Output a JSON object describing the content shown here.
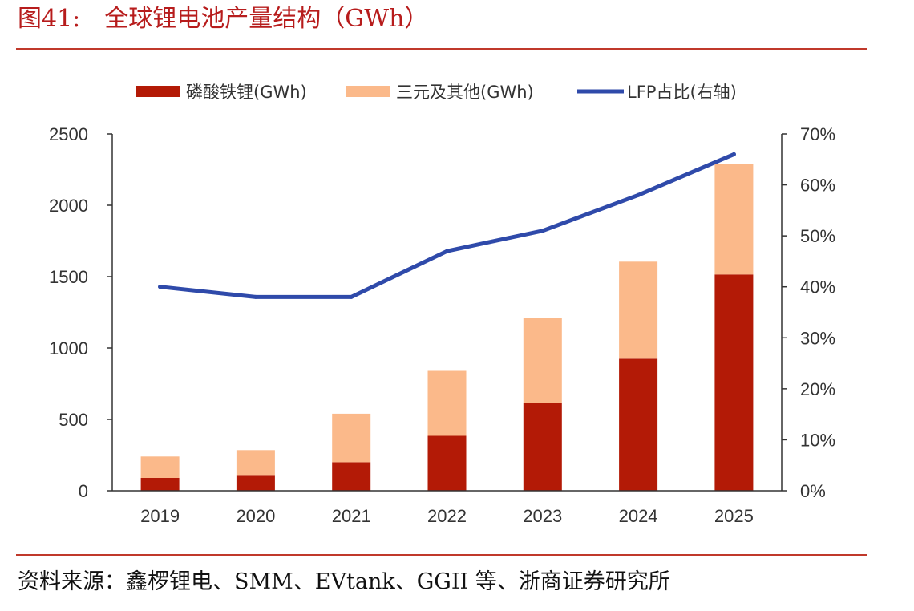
{
  "header": {
    "figure_number": "图41:",
    "title": "全球锂电池产量结构（GWh）"
  },
  "footer": {
    "source": "资料来源：鑫椤锂电、SMM、EVtank、GGII 等、浙商证券研究所"
  },
  "colors": {
    "lfp": "#b31a06",
    "ternary": "#fbb98a",
    "share_line": "#2f4aaa",
    "rule": "#c0392b",
    "title": "#b71c1c"
  },
  "chart_data": {
    "type": "bar",
    "stacked": true,
    "categories": [
      "2019",
      "2020",
      "2021",
      "2022",
      "2023",
      "2024",
      "2025"
    ],
    "series": [
      {
        "name": "磷酸铁锂(GWh)",
        "type": "bar",
        "axis": "left",
        "values": [
          90,
          105,
          200,
          385,
          615,
          925,
          1515
        ]
      },
      {
        "name": "三元及其他(GWh)",
        "type": "bar",
        "axis": "left",
        "values": [
          150,
          180,
          340,
          455,
          595,
          680,
          775
        ]
      },
      {
        "name": "LFP占比(右轴)",
        "type": "line",
        "axis": "right",
        "values": [
          0.4,
          0.38,
          0.38,
          0.47,
          0.51,
          0.58,
          0.66
        ]
      }
    ],
    "y_left": {
      "min": 0,
      "max": 2500,
      "ticks": [
        "0",
        "500",
        "1000",
        "1500",
        "2000",
        "2500"
      ]
    },
    "y_right": {
      "min": 0,
      "max": 0.7,
      "ticks": [
        "0%",
        "10%",
        "20%",
        "30%",
        "40%",
        "50%",
        "60%",
        "70%"
      ]
    },
    "legend_position": "top",
    "grid": false
  }
}
